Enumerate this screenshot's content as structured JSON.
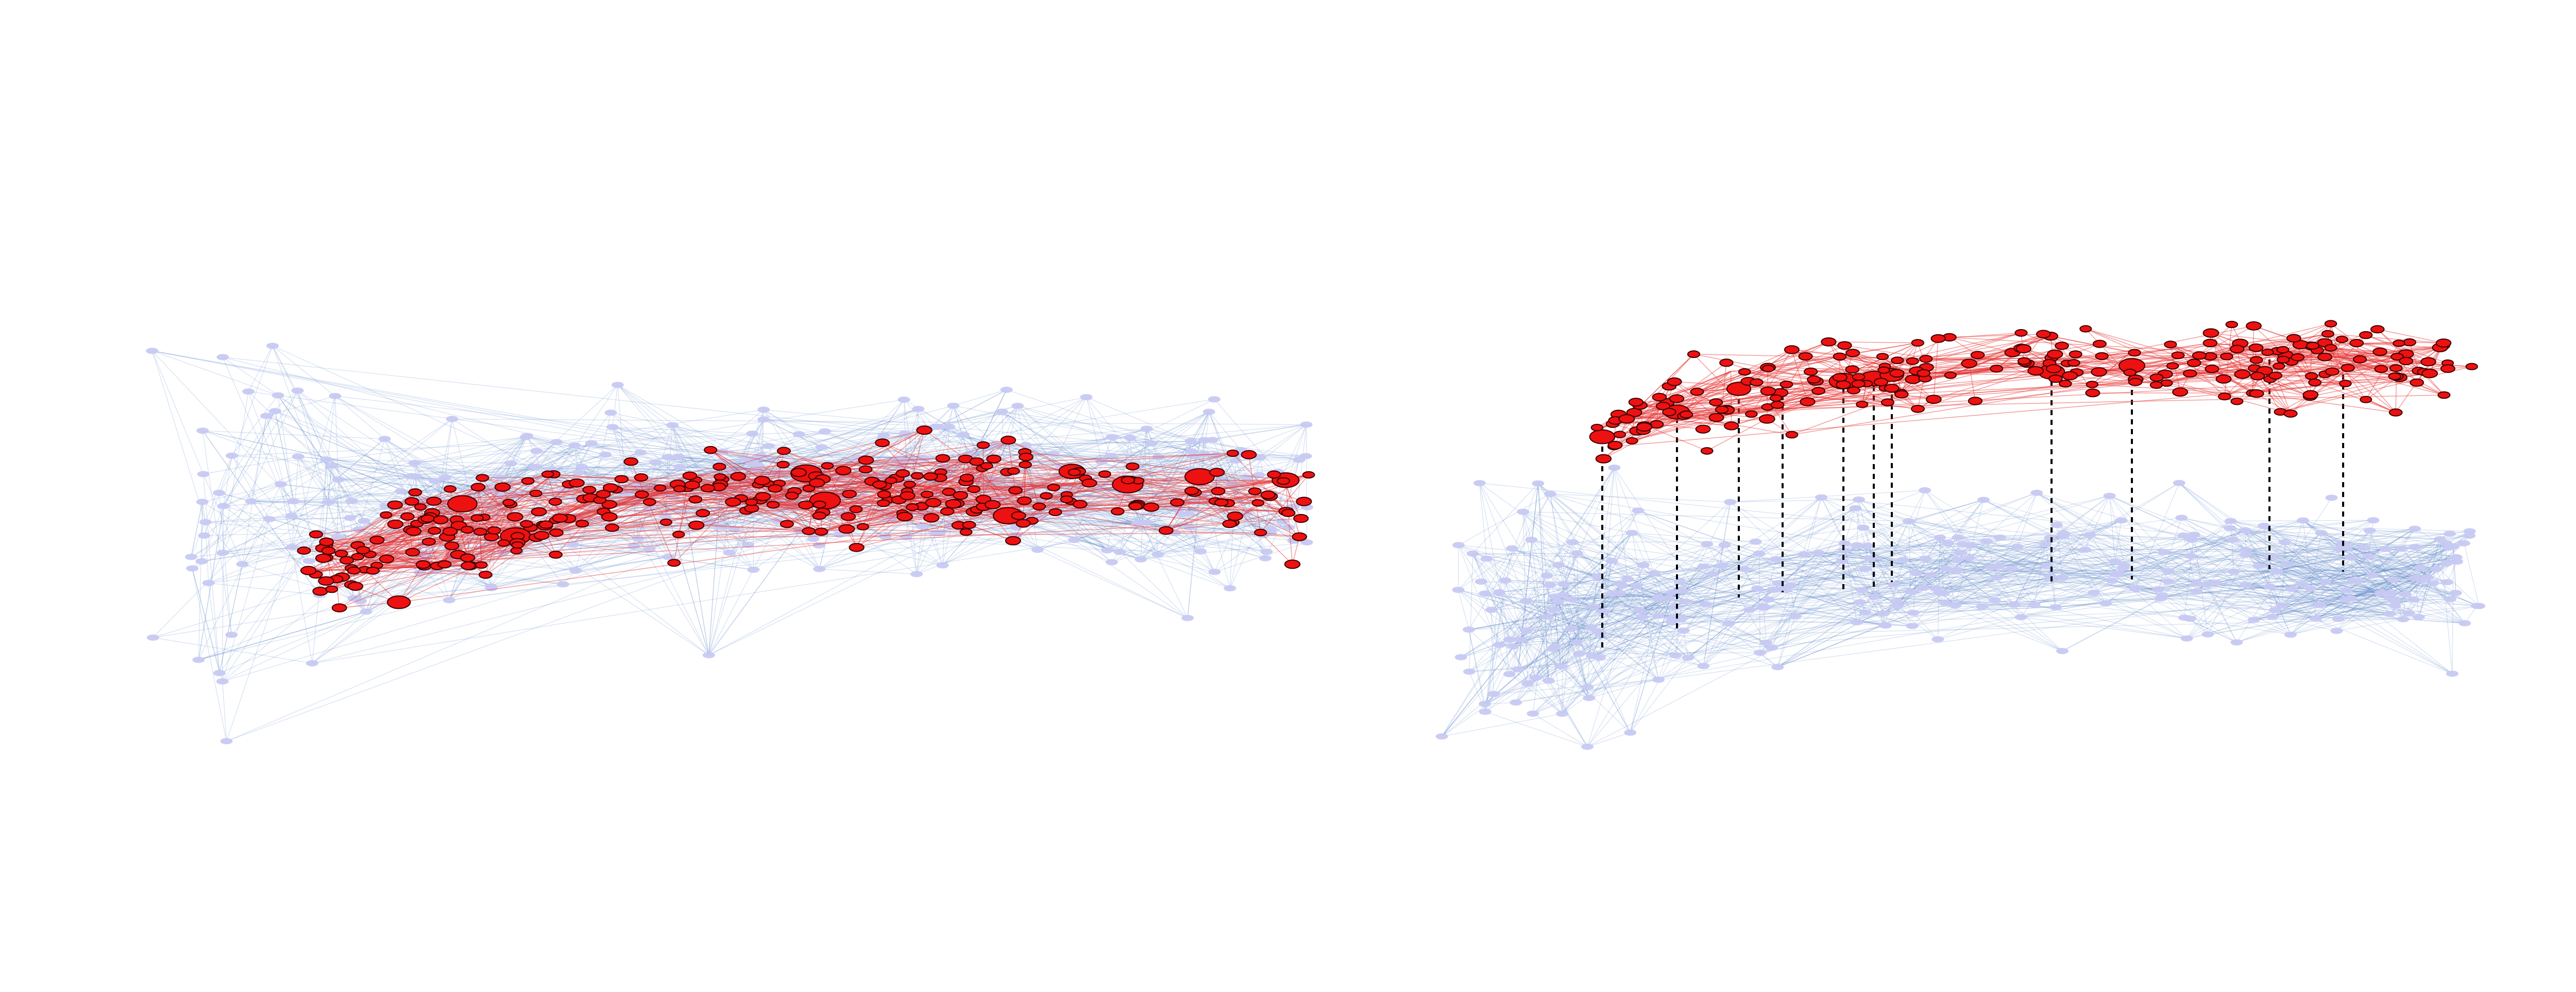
{
  "figure": {
    "background_color": "#ffffff",
    "panels": [
      {
        "id": "overlaid",
        "description_layers": [
          "base",
          "overlay"
        ],
        "layers_overlaid": true,
        "base_node_count": 320,
        "overlay_node_count": 300,
        "large_overlay_nodes": 10
      },
      {
        "id": "separated",
        "layers_overlaid": false,
        "base_node_count": 320,
        "overlay_node_count": 230,
        "large_overlay_nodes": 8,
        "vertical_links": 11
      }
    ],
    "colors": {
      "base_node_fill": "#c7c9f2",
      "base_edge": "#5a86c8",
      "overlay_node_fill": "#ee1111",
      "overlay_node_stroke": "#3a0000",
      "overlay_edge": "#e63030",
      "vertical_link": "#000000"
    }
  }
}
